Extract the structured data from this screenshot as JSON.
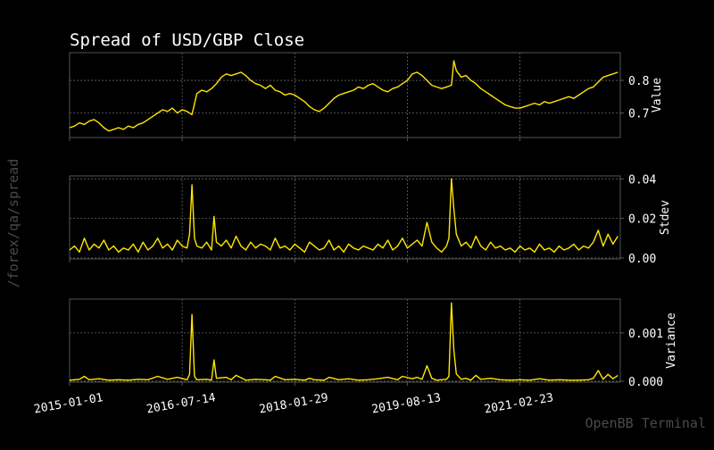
{
  "title": "Spread of USD/GBP Close",
  "side_label": "/forex/qa/spread",
  "watermark": "OpenBB Terminal",
  "colors": {
    "line": "#ffe600",
    "frame": "#555555",
    "grid": "#666666",
    "text": "#ffffff"
  },
  "chart_data": [
    {
      "type": "line",
      "ylabel": "Value",
      "ylim": [
        0.625,
        0.885
      ],
      "yticks": [
        0.7,
        0.8
      ],
      "ytick_labels": [
        "0.7",
        "0.8"
      ],
      "points": [
        [
          0,
          0.655
        ],
        [
          2,
          0.66
        ],
        [
          4,
          0.67
        ],
        [
          6,
          0.665
        ],
        [
          8,
          0.675
        ],
        [
          10,
          0.68
        ],
        [
          12,
          0.67
        ],
        [
          14,
          0.655
        ],
        [
          16,
          0.645
        ],
        [
          18,
          0.65
        ],
        [
          20,
          0.655
        ],
        [
          22,
          0.65
        ],
        [
          24,
          0.66
        ],
        [
          26,
          0.655
        ],
        [
          28,
          0.665
        ],
        [
          30,
          0.67
        ],
        [
          32,
          0.68
        ],
        [
          34,
          0.69
        ],
        [
          36,
          0.7
        ],
        [
          38,
          0.71
        ],
        [
          40,
          0.705
        ],
        [
          42,
          0.715
        ],
        [
          44,
          0.7
        ],
        [
          46,
          0.71
        ],
        [
          48,
          0.705
        ],
        [
          50,
          0.695
        ],
        [
          52,
          0.76
        ],
        [
          54,
          0.77
        ],
        [
          56,
          0.765
        ],
        [
          58,
          0.775
        ],
        [
          60,
          0.79
        ],
        [
          62,
          0.81
        ],
        [
          64,
          0.82
        ],
        [
          66,
          0.815
        ],
        [
          68,
          0.82
        ],
        [
          70,
          0.825
        ],
        [
          72,
          0.815
        ],
        [
          74,
          0.8
        ],
        [
          76,
          0.79
        ],
        [
          78,
          0.785
        ],
        [
          80,
          0.775
        ],
        [
          82,
          0.785
        ],
        [
          84,
          0.77
        ],
        [
          86,
          0.765
        ],
        [
          88,
          0.755
        ],
        [
          90,
          0.76
        ],
        [
          92,
          0.755
        ],
        [
          94,
          0.745
        ],
        [
          96,
          0.735
        ],
        [
          98,
          0.72
        ],
        [
          100,
          0.71
        ],
        [
          102,
          0.705
        ],
        [
          104,
          0.715
        ],
        [
          106,
          0.73
        ],
        [
          108,
          0.745
        ],
        [
          110,
          0.755
        ],
        [
          112,
          0.76
        ],
        [
          114,
          0.765
        ],
        [
          116,
          0.77
        ],
        [
          118,
          0.78
        ],
        [
          120,
          0.775
        ],
        [
          122,
          0.785
        ],
        [
          124,
          0.79
        ],
        [
          126,
          0.78
        ],
        [
          128,
          0.77
        ],
        [
          130,
          0.765
        ],
        [
          132,
          0.775
        ],
        [
          134,
          0.78
        ],
        [
          136,
          0.79
        ],
        [
          138,
          0.8
        ],
        [
          140,
          0.82
        ],
        [
          142,
          0.825
        ],
        [
          144,
          0.815
        ],
        [
          146,
          0.8
        ],
        [
          148,
          0.785
        ],
        [
          150,
          0.78
        ],
        [
          152,
          0.775
        ],
        [
          154,
          0.78
        ],
        [
          156,
          0.785
        ],
        [
          157,
          0.86
        ],
        [
          158,
          0.83
        ],
        [
          160,
          0.81
        ],
        [
          162,
          0.815
        ],
        [
          164,
          0.8
        ],
        [
          166,
          0.79
        ],
        [
          168,
          0.775
        ],
        [
          170,
          0.765
        ],
        [
          172,
          0.755
        ],
        [
          174,
          0.745
        ],
        [
          176,
          0.735
        ],
        [
          178,
          0.725
        ],
        [
          180,
          0.72
        ],
        [
          182,
          0.715
        ],
        [
          184,
          0.715
        ],
        [
          186,
          0.72
        ],
        [
          188,
          0.725
        ],
        [
          190,
          0.73
        ],
        [
          192,
          0.725
        ],
        [
          194,
          0.735
        ],
        [
          196,
          0.73
        ],
        [
          198,
          0.735
        ],
        [
          200,
          0.74
        ],
        [
          202,
          0.745
        ],
        [
          204,
          0.75
        ],
        [
          206,
          0.745
        ],
        [
          208,
          0.755
        ],
        [
          210,
          0.765
        ],
        [
          212,
          0.775
        ],
        [
          214,
          0.78
        ],
        [
          216,
          0.795
        ],
        [
          218,
          0.81
        ],
        [
          220,
          0.815
        ],
        [
          222,
          0.82
        ],
        [
          224,
          0.825
        ]
      ]
    },
    {
      "type": "line",
      "ylabel": "Stdev",
      "ylim": [
        -0.0005,
        0.0415
      ],
      "yticks": [
        0.0,
        0.02,
        0.04
      ],
      "ytick_labels": [
        "0.00",
        "0.02",
        "0.04"
      ],
      "points": [
        [
          0,
          0.004
        ],
        [
          2,
          0.006
        ],
        [
          4,
          0.003
        ],
        [
          6,
          0.01
        ],
        [
          8,
          0.004
        ],
        [
          10,
          0.007
        ],
        [
          12,
          0.005
        ],
        [
          14,
          0.009
        ],
        [
          16,
          0.004
        ],
        [
          18,
          0.006
        ],
        [
          20,
          0.003
        ],
        [
          22,
          0.005
        ],
        [
          24,
          0.004
        ],
        [
          26,
          0.007
        ],
        [
          28,
          0.003
        ],
        [
          30,
          0.008
        ],
        [
          32,
          0.004
        ],
        [
          34,
          0.006
        ],
        [
          36,
          0.01
        ],
        [
          38,
          0.005
        ],
        [
          40,
          0.007
        ],
        [
          42,
          0.004
        ],
        [
          44,
          0.009
        ],
        [
          46,
          0.006
        ],
        [
          48,
          0.005
        ],
        [
          49,
          0.012
        ],
        [
          50,
          0.037
        ],
        [
          51,
          0.01
        ],
        [
          52,
          0.006
        ],
        [
          54,
          0.005
        ],
        [
          56,
          0.008
        ],
        [
          58,
          0.004
        ],
        [
          59,
          0.021
        ],
        [
          60,
          0.008
        ],
        [
          62,
          0.006
        ],
        [
          64,
          0.009
        ],
        [
          66,
          0.005
        ],
        [
          68,
          0.011
        ],
        [
          70,
          0.006
        ],
        [
          72,
          0.004
        ],
        [
          74,
          0.008
        ],
        [
          76,
          0.005
        ],
        [
          78,
          0.007
        ],
        [
          80,
          0.006
        ],
        [
          82,
          0.004
        ],
        [
          84,
          0.01
        ],
        [
          86,
          0.005
        ],
        [
          88,
          0.006
        ],
        [
          90,
          0.004
        ],
        [
          92,
          0.007
        ],
        [
          94,
          0.005
        ],
        [
          96,
          0.003
        ],
        [
          98,
          0.008
        ],
        [
          100,
          0.006
        ],
        [
          102,
          0.004
        ],
        [
          104,
          0.005
        ],
        [
          106,
          0.009
        ],
        [
          108,
          0.004
        ],
        [
          110,
          0.006
        ],
        [
          112,
          0.003
        ],
        [
          114,
          0.007
        ],
        [
          116,
          0.005
        ],
        [
          118,
          0.004
        ],
        [
          120,
          0.006
        ],
        [
          122,
          0.005
        ],
        [
          124,
          0.004
        ],
        [
          126,
          0.007
        ],
        [
          128,
          0.005
        ],
        [
          130,
          0.009
        ],
        [
          132,
          0.004
        ],
        [
          134,
          0.006
        ],
        [
          136,
          0.01
        ],
        [
          138,
          0.005
        ],
        [
          140,
          0.007
        ],
        [
          142,
          0.009
        ],
        [
          144,
          0.006
        ],
        [
          146,
          0.018
        ],
        [
          148,
          0.008
        ],
        [
          150,
          0.005
        ],
        [
          152,
          0.003
        ],
        [
          154,
          0.006
        ],
        [
          155,
          0.01
        ],
        [
          156,
          0.04
        ],
        [
          157,
          0.025
        ],
        [
          158,
          0.012
        ],
        [
          160,
          0.006
        ],
        [
          162,
          0.008
        ],
        [
          164,
          0.005
        ],
        [
          166,
          0.011
        ],
        [
          168,
          0.006
        ],
        [
          170,
          0.004
        ],
        [
          172,
          0.008
        ],
        [
          174,
          0.005
        ],
        [
          176,
          0.006
        ],
        [
          178,
          0.004
        ],
        [
          180,
          0.005
        ],
        [
          182,
          0.003
        ],
        [
          184,
          0.006
        ],
        [
          186,
          0.004
        ],
        [
          188,
          0.005
        ],
        [
          190,
          0.003
        ],
        [
          192,
          0.007
        ],
        [
          194,
          0.004
        ],
        [
          196,
          0.005
        ],
        [
          198,
          0.003
        ],
        [
          200,
          0.006
        ],
        [
          202,
          0.004
        ],
        [
          204,
          0.005
        ],
        [
          206,
          0.007
        ],
        [
          208,
          0.004
        ],
        [
          210,
          0.006
        ],
        [
          212,
          0.005
        ],
        [
          214,
          0.008
        ],
        [
          216,
          0.014
        ],
        [
          218,
          0.006
        ],
        [
          220,
          0.012
        ],
        [
          222,
          0.007
        ],
        [
          224,
          0.011
        ]
      ]
    },
    {
      "type": "line",
      "ylabel": "Variance",
      "ylim": [
        -2e-05,
        0.0017
      ],
      "yticks": [
        0.0,
        0.001
      ],
      "ytick_labels": [
        "0.000",
        "0.001"
      ],
      "points": [
        [
          0,
          2e-05
        ],
        [
          4,
          4e-05
        ],
        [
          6,
          0.0001
        ],
        [
          8,
          3e-05
        ],
        [
          12,
          5e-05
        ],
        [
          16,
          2e-05
        ],
        [
          20,
          3e-05
        ],
        [
          24,
          2e-05
        ],
        [
          28,
          4e-05
        ],
        [
          32,
          3e-05
        ],
        [
          36,
          0.0001
        ],
        [
          40,
          4e-05
        ],
        [
          44,
          8e-05
        ],
        [
          48,
          3e-05
        ],
        [
          49,
          0.00014
        ],
        [
          50,
          0.00138
        ],
        [
          51,
          0.0001
        ],
        [
          52,
          3e-05
        ],
        [
          56,
          4e-05
        ],
        [
          58,
          2e-05
        ],
        [
          59,
          0.00044
        ],
        [
          60,
          6e-05
        ],
        [
          64,
          8e-05
        ],
        [
          66,
          3e-05
        ],
        [
          68,
          0.00012
        ],
        [
          72,
          2e-05
        ],
        [
          76,
          4e-05
        ],
        [
          80,
          3e-05
        ],
        [
          82,
          2e-05
        ],
        [
          84,
          0.0001
        ],
        [
          88,
          3e-05
        ],
        [
          92,
          4e-05
        ],
        [
          96,
          2e-05
        ],
        [
          98,
          6e-05
        ],
        [
          100,
          3e-05
        ],
        [
          104,
          2e-05
        ],
        [
          106,
          8e-05
        ],
        [
          110,
          3e-05
        ],
        [
          114,
          5e-05
        ],
        [
          118,
          2e-05
        ],
        [
          122,
          3e-05
        ],
        [
          126,
          5e-05
        ],
        [
          130,
          8e-05
        ],
        [
          134,
          3e-05
        ],
        [
          136,
          0.0001
        ],
        [
          140,
          5e-05
        ],
        [
          142,
          8e-05
        ],
        [
          144,
          4e-05
        ],
        [
          146,
          0.00032
        ],
        [
          148,
          6e-05
        ],
        [
          150,
          2e-05
        ],
        [
          154,
          4e-05
        ],
        [
          155,
          0.0001
        ],
        [
          156,
          0.00162
        ],
        [
          157,
          0.00065
        ],
        [
          158,
          0.00015
        ],
        [
          160,
          4e-05
        ],
        [
          162,
          6e-05
        ],
        [
          164,
          2e-05
        ],
        [
          166,
          0.00012
        ],
        [
          168,
          4e-05
        ],
        [
          172,
          6e-05
        ],
        [
          176,
          3e-05
        ],
        [
          180,
          2e-05
        ],
        [
          184,
          3e-05
        ],
        [
          188,
          2e-05
        ],
        [
          192,
          5e-05
        ],
        [
          196,
          2e-05
        ],
        [
          200,
          3e-05
        ],
        [
          204,
          2e-05
        ],
        [
          208,
          2e-05
        ],
        [
          212,
          3e-05
        ],
        [
          214,
          6e-05
        ],
        [
          216,
          0.00022
        ],
        [
          218,
          4e-05
        ],
        [
          220,
          0.00014
        ],
        [
          222,
          5e-05
        ],
        [
          224,
          0.00012
        ]
      ]
    }
  ],
  "x_axis": {
    "range": [
      0,
      225
    ],
    "ticks": [
      0,
      46,
      92,
      138,
      184
    ],
    "tick_labels": [
      "2015-01-01",
      "2016-07-14",
      "2018-01-29",
      "2019-08-13",
      "2021-02-23"
    ]
  }
}
